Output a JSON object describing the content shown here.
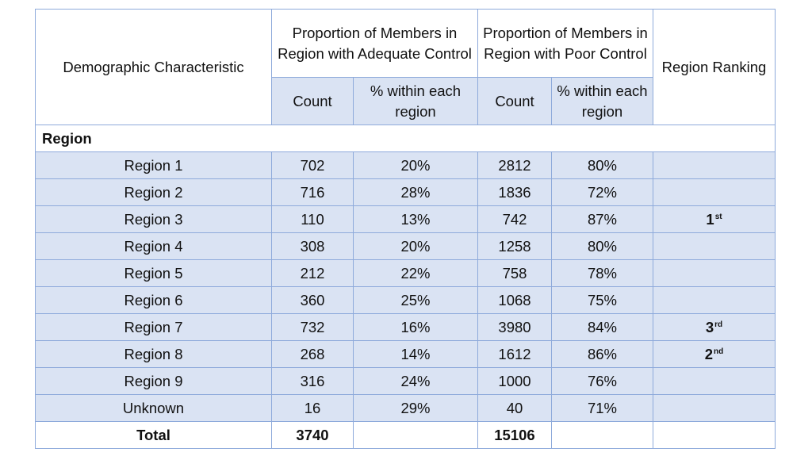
{
  "header": {
    "demographic": "Demographic Characteristic",
    "adequate": "Proportion of Members in Region with Adequate Control",
    "poor": "Proportion of Members in Region with Poor Control",
    "ranking": "Region Ranking",
    "count": "Count",
    "pct": "% within each region"
  },
  "group_label": "Region",
  "rows": [
    {
      "name": "Region 1",
      "adequate_count": "702",
      "adequate_pct": "20%",
      "poor_count": "2812",
      "poor_pct": "80%",
      "rank_num": "",
      "rank_suffix": ""
    },
    {
      "name": "Region 2",
      "adequate_count": "716",
      "adequate_pct": "28%",
      "poor_count": "1836",
      "poor_pct": "72%",
      "rank_num": "",
      "rank_suffix": ""
    },
    {
      "name": "Region 3",
      "adequate_count": "110",
      "adequate_pct": "13%",
      "poor_count": "742",
      "poor_pct": "87%",
      "rank_num": "1",
      "rank_suffix": "st"
    },
    {
      "name": "Region 4",
      "adequate_count": "308",
      "adequate_pct": "20%",
      "poor_count": "1258",
      "poor_pct": "80%",
      "rank_num": "",
      "rank_suffix": ""
    },
    {
      "name": "Region 5",
      "adequate_count": "212",
      "adequate_pct": "22%",
      "poor_count": "758",
      "poor_pct": "78%",
      "rank_num": "",
      "rank_suffix": ""
    },
    {
      "name": "Region 6",
      "adequate_count": "360",
      "adequate_pct": "25%",
      "poor_count": "1068",
      "poor_pct": "75%",
      "rank_num": "",
      "rank_suffix": ""
    },
    {
      "name": "Region 7",
      "adequate_count": "732",
      "adequate_pct": "16%",
      "poor_count": "3980",
      "poor_pct": "84%",
      "rank_num": "3",
      "rank_suffix": "rd"
    },
    {
      "name": "Region 8",
      "adequate_count": "268",
      "adequate_pct": "14%",
      "poor_count": "1612",
      "poor_pct": "86%",
      "rank_num": "2",
      "rank_suffix": "nd"
    },
    {
      "name": "Region 9",
      "adequate_count": "316",
      "adequate_pct": "24%",
      "poor_count": "1000",
      "poor_pct": "76%",
      "rank_num": "",
      "rank_suffix": ""
    },
    {
      "name": "Unknown",
      "adequate_count": "16",
      "adequate_pct": "29%",
      "poor_count": "40",
      "poor_pct": "71%",
      "rank_num": "",
      "rank_suffix": ""
    }
  ],
  "total": {
    "label": "Total",
    "adequate_count": "3740",
    "poor_count": "15106"
  },
  "colors": {
    "border": "#8eaadb",
    "row_fill": "#dae3f3"
  }
}
